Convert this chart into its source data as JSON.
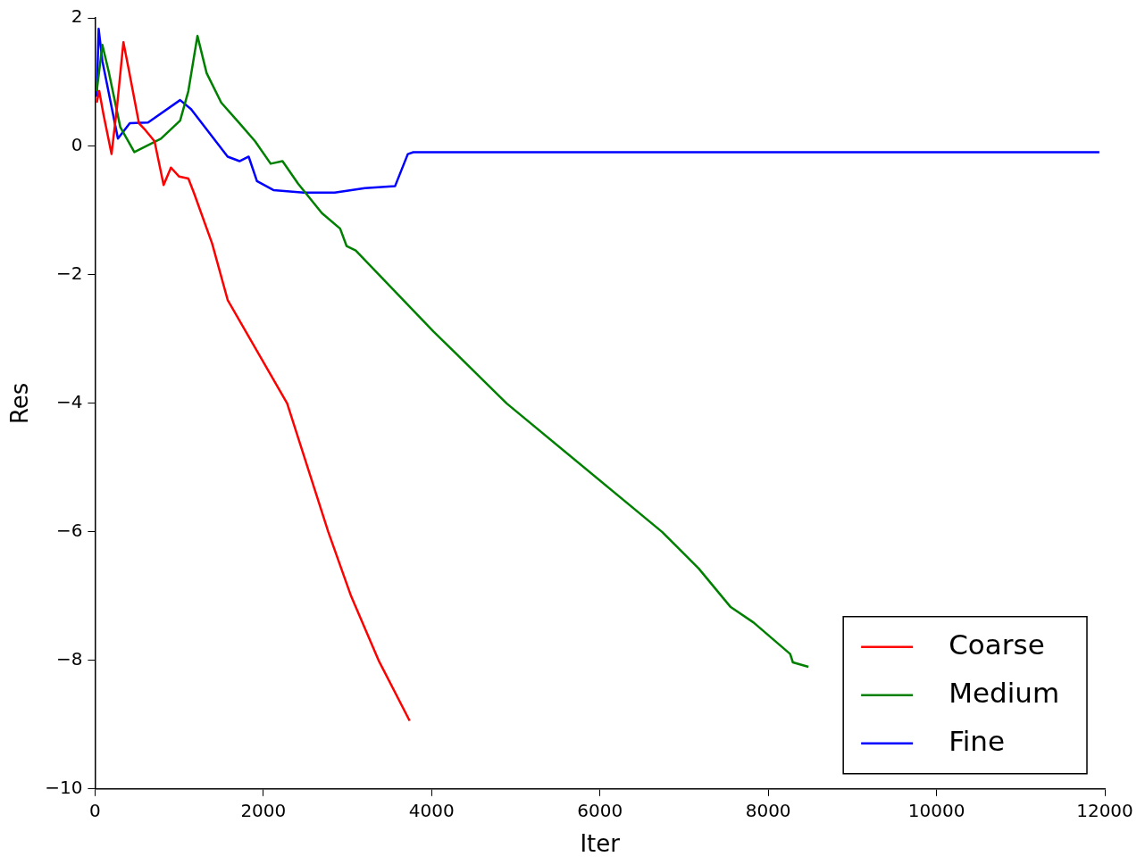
{
  "chart_data": {
    "type": "line",
    "xlabel": "Iter",
    "ylabel": "Res",
    "xlim": [
      0,
      12000
    ],
    "ylim": [
      -10,
      2
    ],
    "xticks": [
      0,
      2000,
      4000,
      6000,
      8000,
      10000,
      12000
    ],
    "yticks": [
      -10,
      -8,
      -6,
      -4,
      -2,
      0,
      2
    ],
    "grid": false,
    "legend": "bottom right",
    "marker": "none",
    "line_style": "solid",
    "series": [
      {
        "name": "Coarse",
        "color": "#ff0000",
        "x": [
          20,
          50,
          100,
          196,
          260,
          337,
          400,
          522,
          600,
          707,
          815,
          902,
          1000,
          1109,
          1174,
          1391,
          1576,
          2283,
          2772,
          3043,
          3370,
          3739
        ],
        "values": [
          0.68,
          0.86,
          0.5,
          -0.12,
          0.6,
          1.62,
          1.2,
          0.36,
          0.25,
          0.08,
          -0.6,
          -0.33,
          -0.47,
          -0.5,
          -0.72,
          -1.51,
          -2.39,
          -4,
          -6,
          -7,
          -8,
          -8.94
        ]
      },
      {
        "name": "Medium",
        "color": "#008000",
        "x": [
          20,
          87,
          163,
          300,
          467,
          783,
          1011,
          1109,
          1217,
          1326,
          1500,
          1717,
          1902,
          2087,
          2228,
          2413,
          2696,
          2913,
          2989,
          3098,
          4022,
          4891,
          6739,
          7174,
          7554,
          7826,
          8261,
          8293,
          8478
        ],
        "values": [
          0.86,
          1.58,
          1.16,
          0.3,
          -0.09,
          0.12,
          0.4,
          0.86,
          1.72,
          1.14,
          0.68,
          0.36,
          0.08,
          -0.27,
          -0.23,
          -0.58,
          -1.04,
          -1.28,
          -1.55,
          -1.62,
          -2.88,
          -4,
          -6,
          -6.57,
          -7.17,
          -7.41,
          -7.9,
          -8.03,
          -8.1
        ]
      },
      {
        "name": "Fine",
        "color": "#0000ff",
        "x": [
          20,
          43,
          87,
          272,
          413,
          630,
          1011,
          1141,
          1576,
          1717,
          1826,
          1924,
          2120,
          2478,
          2848,
          3207,
          3565,
          3717,
          3783,
          11935
        ],
        "values": [
          0.77,
          1.83,
          1.33,
          0.12,
          0.36,
          0.37,
          0.72,
          0.58,
          -0.16,
          -0.23,
          -0.16,
          -0.54,
          -0.68,
          -0.72,
          -0.72,
          -0.65,
          -0.62,
          -0.12,
          -0.09,
          -0.09
        ]
      }
    ]
  }
}
